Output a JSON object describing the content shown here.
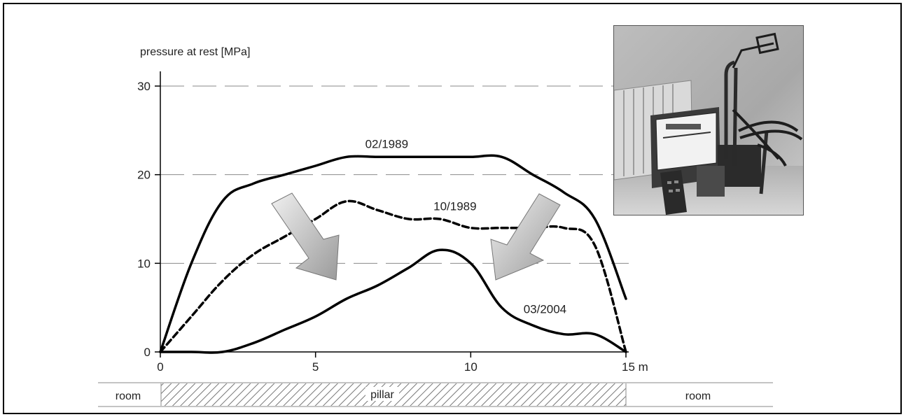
{
  "chart_data": {
    "type": "line",
    "ylabel": "pressure at rest [MPa]",
    "xlabel": "",
    "xlim": [
      0,
      15
    ],
    "ylim": [
      0,
      30
    ],
    "x_ticks": [
      "0",
      "5",
      "10",
      "15 m"
    ],
    "y_ticks": [
      "0",
      "10",
      "20",
      "30"
    ],
    "grid": "dashed horizontal",
    "series": [
      {
        "name": "02/1989",
        "style": "solid",
        "x": [
          0,
          1,
          2,
          3,
          4,
          5,
          6,
          7,
          8,
          9,
          10,
          11,
          12,
          13,
          14,
          15
        ],
        "y": [
          0,
          10,
          17,
          19,
          20,
          21,
          22,
          22,
          22,
          22,
          22,
          22,
          20,
          18,
          15,
          6
        ]
      },
      {
        "name": "10/1989",
        "style": "dashed",
        "x": [
          0,
          1,
          2,
          3,
          4,
          5,
          6,
          7,
          8,
          9,
          10,
          11,
          12,
          13,
          14,
          15
        ],
        "y": [
          0,
          4,
          8,
          11,
          13,
          15,
          17,
          16,
          15,
          15,
          14,
          14,
          14,
          14,
          12,
          0
        ]
      },
      {
        "name": "03/2004",
        "style": "solid",
        "x": [
          0,
          1,
          2,
          3,
          4,
          5,
          6,
          7,
          8,
          9,
          10,
          11,
          12,
          13,
          14,
          15
        ],
        "y": [
          0,
          0,
          0,
          1,
          2.5,
          4,
          6,
          7.5,
          9.5,
          11.5,
          10,
          5,
          3,
          2,
          2,
          0
        ]
      }
    ],
    "bottom_bar": {
      "left": "room",
      "center": "pillar",
      "right": "room"
    }
  },
  "photo": {
    "subject": "measuring-equipment-photo"
  }
}
